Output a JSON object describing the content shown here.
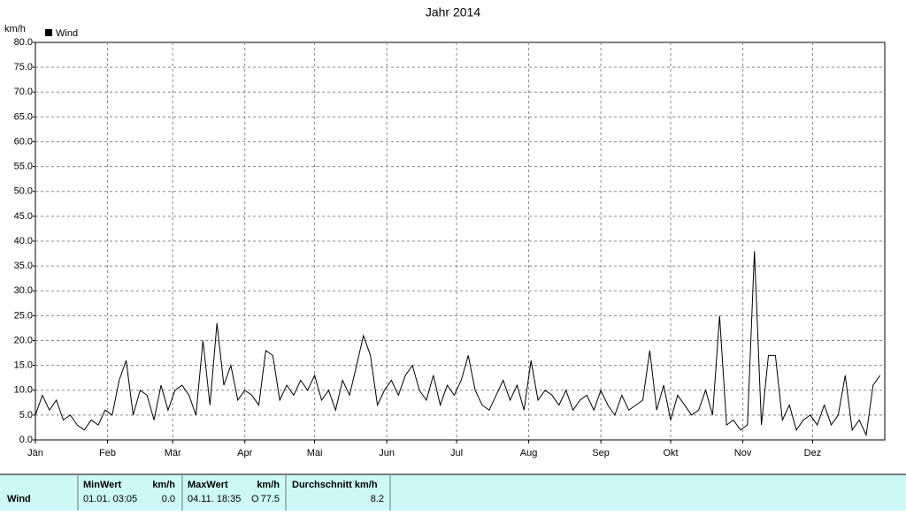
{
  "chart_data": {
    "type": "line",
    "title": "Jahr 2014",
    "y_label": "km/h",
    "x": [
      0,
      3,
      6,
      9,
      12,
      15,
      18,
      21,
      24,
      27,
      30,
      33,
      36,
      39,
      42,
      45,
      48,
      51,
      54,
      57,
      60,
      63,
      66,
      69,
      72,
      75,
      78,
      81,
      84,
      87,
      90,
      93,
      96,
      99,
      102,
      105,
      108,
      111,
      114,
      117,
      120,
      123,
      126,
      129,
      132,
      135,
      138,
      141,
      144,
      147,
      150,
      153,
      156,
      159,
      162,
      165,
      168,
      171,
      174,
      177,
      180,
      183,
      186,
      189,
      192,
      195,
      198,
      201,
      204,
      207,
      210,
      213,
      216,
      219,
      222,
      225,
      228,
      231,
      234,
      237,
      240,
      243,
      246,
      249,
      252,
      255,
      258,
      261,
      264,
      267,
      270,
      273,
      276,
      279,
      282,
      285,
      288,
      291,
      294,
      297,
      300,
      303,
      306,
      309,
      312,
      315,
      318,
      321,
      324,
      327,
      330,
      333,
      336,
      339,
      342,
      345,
      348,
      351,
      354,
      357,
      360,
      363
    ],
    "series": [
      {
        "name": "Wind",
        "color": "#000000",
        "values": [
          5,
          9,
          6,
          8,
          4,
          5,
          3,
          2,
          4,
          3,
          6,
          5,
          12,
          16,
          5,
          10,
          9,
          4,
          11,
          6,
          10,
          11,
          9,
          5,
          20,
          7,
          23.5,
          11,
          15,
          8,
          10,
          9,
          7,
          18,
          17,
          8,
          11,
          9,
          12,
          10,
          13,
          8,
          10,
          6,
          12,
          9,
          15,
          21,
          17,
          7,
          10,
          12,
          9,
          13,
          15,
          10,
          8,
          13,
          7,
          11,
          9,
          12,
          17,
          10,
          7,
          6,
          9,
          12,
          8,
          11,
          6,
          16,
          8,
          10,
          9,
          7,
          10,
          6,
          8,
          9,
          6,
          10,
          7,
          5,
          9,
          6,
          7,
          8,
          18,
          6,
          11,
          4,
          9,
          7,
          5,
          6,
          10,
          5,
          25,
          3,
          4,
          2,
          3,
          38,
          3,
          17,
          17,
          4,
          7,
          2,
          4,
          5,
          3,
          7,
          3,
          5,
          13,
          2,
          4,
          1,
          11,
          13
        ]
      }
    ],
    "xlim": [
      0,
      365
    ],
    "ylim": [
      0,
      80
    ],
    "xticks": [
      {
        "value": 0,
        "label": "Jän"
      },
      {
        "value": 31,
        "label": "Feb"
      },
      {
        "value": 59,
        "label": "Mär"
      },
      {
        "value": 90,
        "label": "Apr"
      },
      {
        "value": 120,
        "label": "Mai"
      },
      {
        "value": 151,
        "label": "Jun"
      },
      {
        "value": 181,
        "label": "Jul"
      },
      {
        "value": 212,
        "label": "Aug"
      },
      {
        "value": 243,
        "label": "Sep"
      },
      {
        "value": 273,
        "label": "Okt"
      },
      {
        "value": 304,
        "label": "Nov"
      },
      {
        "value": 334,
        "label": "Dez"
      }
    ],
    "yticks": [
      {
        "value": 0,
        "label": "0.0"
      },
      {
        "value": 5,
        "label": "5.0"
      },
      {
        "value": 10,
        "label": "10.0"
      },
      {
        "value": 15,
        "label": "15.0"
      },
      {
        "value": 20,
        "label": "20.0"
      },
      {
        "value": 25,
        "label": "25.0"
      },
      {
        "value": 30,
        "label": "30.0"
      },
      {
        "value": 35,
        "label": "35.0"
      },
      {
        "value": 40,
        "label": "40.0"
      },
      {
        "value": 45,
        "label": "45.0"
      },
      {
        "value": 50,
        "label": "50.0"
      },
      {
        "value": 55,
        "label": "55.0"
      },
      {
        "value": 60,
        "label": "60.0"
      },
      {
        "value": 65,
        "label": "65.0"
      },
      {
        "value": 70,
        "label": "70.0"
      },
      {
        "value": 75,
        "label": "75.0"
      },
      {
        "value": 80,
        "label": "80.0"
      }
    ],
    "grid": true
  },
  "stats": {
    "row_label": "Wind",
    "min_header": "MinWert",
    "min_unit": "km/h",
    "min_time": "01.01.  03:05",
    "min_value": "0.0",
    "max_header": "MaxWert",
    "max_unit": "km/h",
    "max_time": "04.11.  18:35",
    "max_dir": "O",
    "max_value": "77.5",
    "avg_header": "Durchschnitt km/h",
    "avg_value": "8.2"
  }
}
